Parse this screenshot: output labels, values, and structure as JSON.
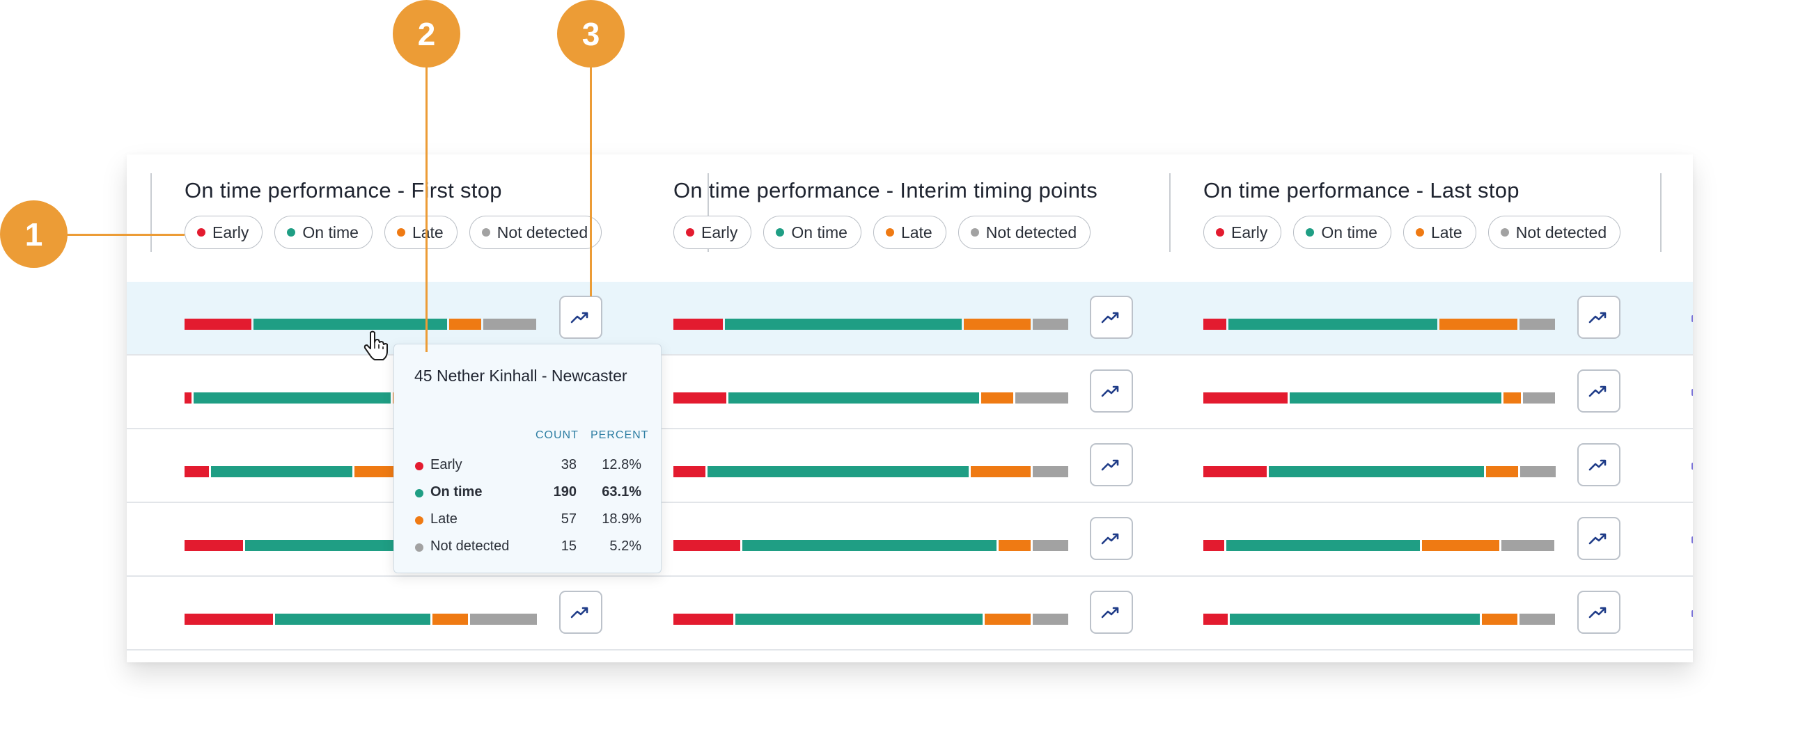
{
  "columns": [
    {
      "title": "On time performance - First stop"
    },
    {
      "title": "On time performance - Interim timing points"
    },
    {
      "title": "On time performance - Last stop"
    }
  ],
  "legend": [
    {
      "label": "Early",
      "color": "#e31b2f"
    },
    {
      "label": "On time",
      "color": "#1f9e84"
    },
    {
      "label": "Late",
      "color": "#ef7a13"
    },
    {
      "label": "Not detected",
      "color": "#a2a2a2"
    }
  ],
  "icons": {
    "trend_button": "trend-line-icon",
    "cursor": "hand-pointer-icon"
  },
  "rows": [
    {
      "highlighted": true,
      "bars": [
        [
          0.19,
          0.55,
          0.09,
          0.15
        ],
        [
          0.14,
          0.67,
          0.19,
          0.1
        ],
        [
          0.065,
          0.59,
          0.22,
          0.1
        ]
      ]
    },
    {
      "highlighted": false,
      "bars": [
        [
          0.02,
          0.57,
          0.2,
          0.21
        ],
        [
          0.15,
          0.71,
          0.09,
          0.15
        ],
        [
          0.24,
          0.6,
          0.05,
          0.09
        ]
      ]
    },
    {
      "highlighted": false,
      "bars": [
        [
          0.07,
          0.41,
          0.26,
          0.26
        ],
        [
          0.09,
          0.74,
          0.17,
          0.1
        ],
        [
          0.18,
          0.61,
          0.09,
          0.1
        ]
      ]
    },
    {
      "highlighted": false,
      "bars": [
        [
          0.17,
          0.45,
          0.18,
          0.2
        ],
        [
          0.19,
          0.72,
          0.09,
          0.1
        ],
        [
          0.06,
          0.55,
          0.22,
          0.15
        ]
      ]
    },
    {
      "highlighted": false,
      "bars": [
        [
          0.25,
          0.44,
          0.1,
          0.19
        ],
        [
          0.17,
          0.7,
          0.13,
          0.1
        ],
        [
          0.07,
          0.71,
          0.1,
          0.1
        ]
      ]
    }
  ],
  "tooltip": {
    "title": "45 Nether Kinhall - Newcaster",
    "count_header": "COUNT",
    "percent_header": "PERCENT",
    "items": [
      {
        "label": "Early",
        "count": "38",
        "percent": "12.8%",
        "color": "#e31b2f",
        "bold": false
      },
      {
        "label": "On time",
        "count": "190",
        "percent": "63.1%",
        "color": "#1f9e84",
        "bold": true
      },
      {
        "label": "Late",
        "count": "57",
        "percent": "18.9%",
        "color": "#ef7a13",
        "bold": false
      },
      {
        "label": "Not detected",
        "count": "15",
        "percent": "5.2%",
        "color": "#a2a2a2",
        "bold": false
      }
    ]
  },
  "callouts": [
    {
      "label": "1"
    },
    {
      "label": "2"
    },
    {
      "label": "3"
    }
  ]
}
